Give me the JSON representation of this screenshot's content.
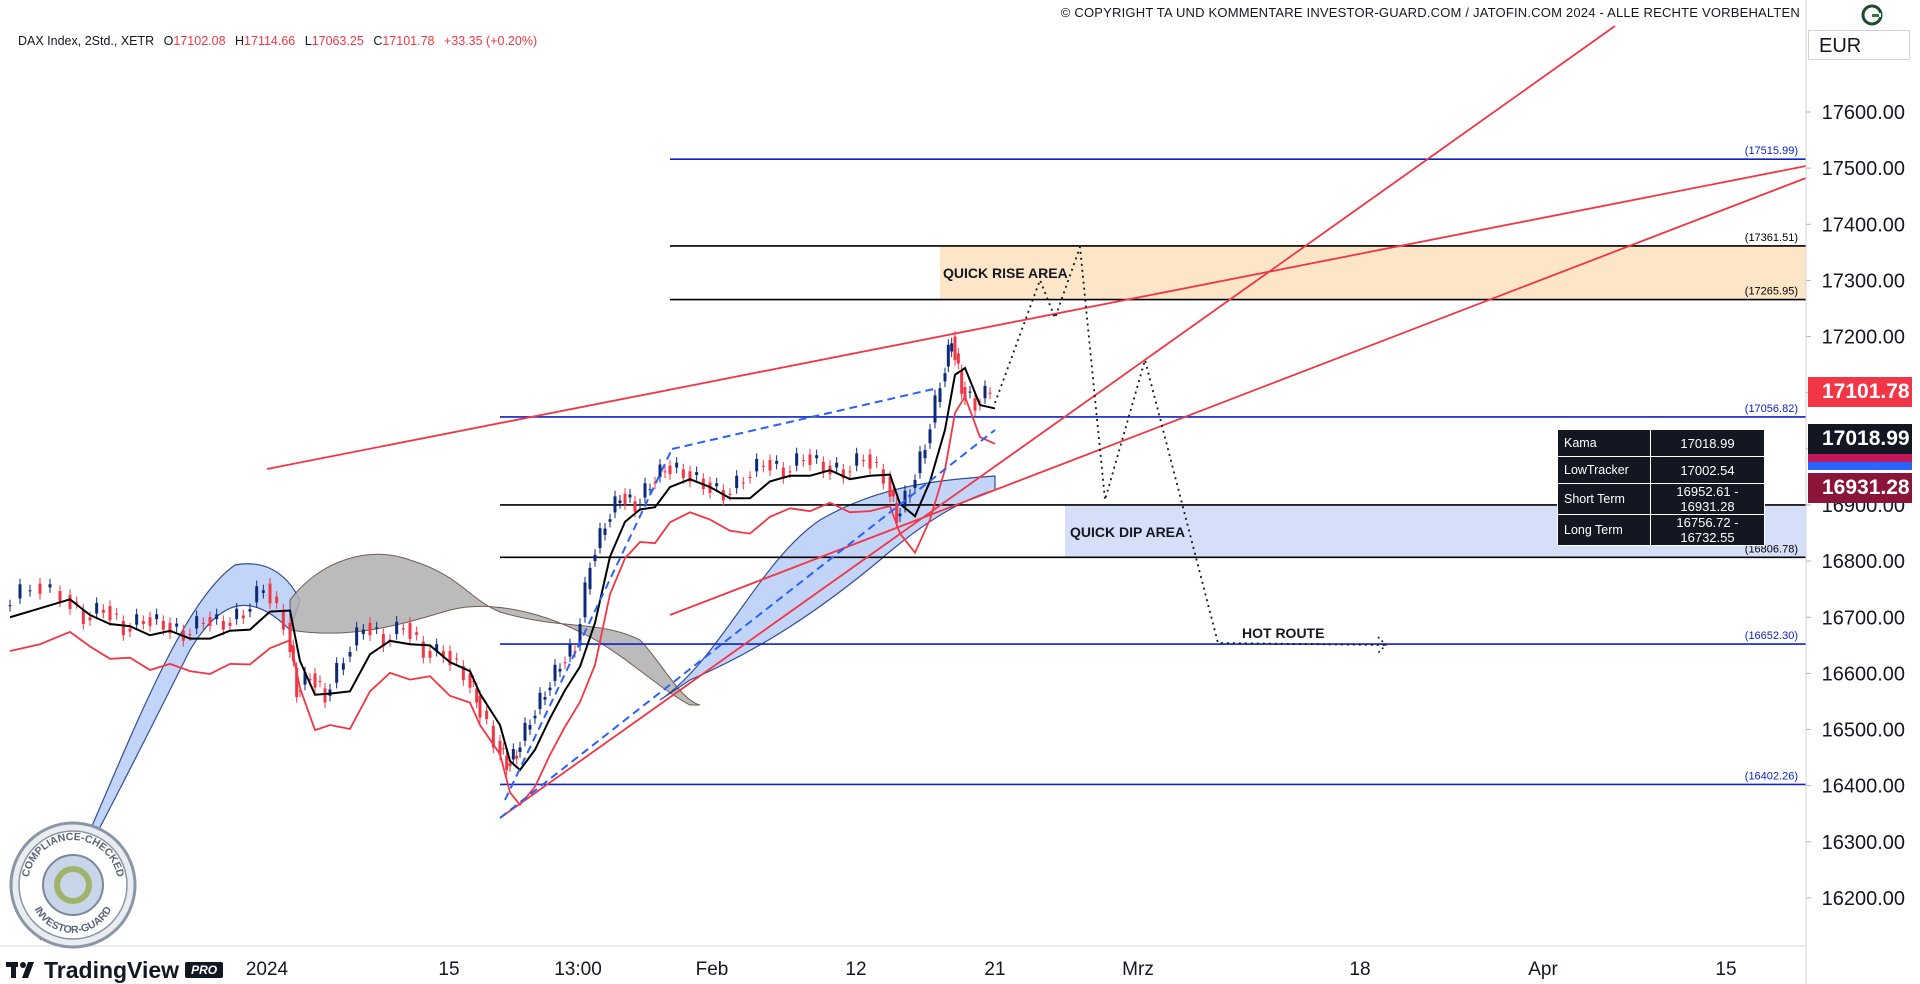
{
  "copyright": "© COPYRIGHT TA UND KOMMENTARE INVESTOR-GUARD.COM / JATOFIN.COM 2024 - ALLE RECHTE VORBEHALTEN",
  "currency": "EUR",
  "header": {
    "symbol": "DAX Index, 2Std., XETR",
    "open_label": "O",
    "open": "17102.08",
    "high_label": "H",
    "high": "17114.66",
    "low_label": "L",
    "low": "17063.25",
    "close_label": "C",
    "close": "17101.78",
    "change": "+33.35 (+0.20%)"
  },
  "price_tags": {
    "last": "17101.78",
    "kama": "17018.99",
    "short": "16931.28"
  },
  "indicator_table": [
    {
      "name": "Kama",
      "value": "17018.99"
    },
    {
      "name": "LowTracker",
      "value": "17002.54"
    },
    {
      "name": "Short Term",
      "value": "16952.61 - 16931.28"
    },
    {
      "name": "Long Term",
      "value": "16756.72 - 16732.55"
    }
  ],
  "branding": {
    "tradingview": "TradingView",
    "pro": "PRO",
    "seal_top": "COMPLIANCE-CHECKED",
    "seal_bottom": "INVESTOR-GUARD"
  },
  "colors": {
    "level_blue": "#0d22c9",
    "level_black": "#000000",
    "trend_red": "#f23645",
    "candle_up": "#0d2a7a",
    "candle_down": "#f23645",
    "kama": "#000000",
    "lowtracker": "#f23645",
    "cloud_blue": "#bcd0f7",
    "cloud_grey": "#b0b0b0",
    "rise_zone": "#fde6c7",
    "dip_zone": "#d5dff8",
    "tag_last": "#f23645",
    "tag_kama": "#131722",
    "tag_short": "#8b1538"
  },
  "chart_data": {
    "type": "candlestick",
    "title": "",
    "ylabel": "",
    "ylim": [
      16110,
      17770
    ],
    "y_ticks": [
      16200,
      16300,
      16400,
      16500,
      16600,
      16700,
      16800,
      16900,
      17000,
      17100,
      17200,
      17300,
      17400,
      17500,
      17600
    ],
    "y_tick_labels": [
      "16200.00",
      "16300.00",
      "16400.00",
      "16500.00",
      "16600.00",
      "16700.00",
      "16800.00",
      "16900.00",
      "17000.00",
      "17100.00",
      "17200.00",
      "17300.00",
      "17400.00",
      "17500.00",
      "17600.00"
    ],
    "x_ticks": [
      "2024",
      "15",
      "13:00",
      "Feb",
      "12",
      "21",
      "Mrz",
      "18",
      "Apr",
      "15"
    ],
    "levels": [
      {
        "price": 17515.99,
        "label": "(17515.99)",
        "color": "blue"
      },
      {
        "price": 17361.51,
        "label": "(17361.51)",
        "color": "black"
      },
      {
        "price": 17265.95,
        "label": "(17265.95)",
        "color": "black"
      },
      {
        "price": 17056.82,
        "label": "(17056.82)",
        "color": "blue"
      },
      {
        "price": 16900,
        "label": "",
        "color": "black"
      },
      {
        "price": 16806.78,
        "label": "(16806.78)",
        "color": "black"
      },
      {
        "price": 16652.3,
        "label": "(16652.30)",
        "color": "blue"
      },
      {
        "price": 16402.26,
        "label": "(16402.26)",
        "color": "blue"
      }
    ],
    "zones": [
      {
        "label": "QUICK RISE AREA",
        "from": 17265.95,
        "to": 17361.51
      },
      {
        "label": "QUICK DIP AREA",
        "from": 16806.78,
        "to": 16900
      }
    ],
    "annotations": [
      "QUICK RISE AREA",
      "QUICK DIP AREA",
      "HOT ROUTE"
    ],
    "legend": "none",
    "grid": false
  }
}
